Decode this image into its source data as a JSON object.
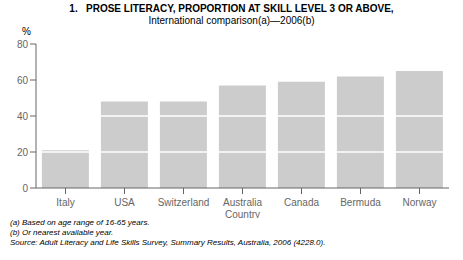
{
  "chart_data": {
    "type": "bar",
    "title": "1.   PROSE LITERACY, PROPORTION AT SKILL LEVEL 3 OR ABOVE,",
    "subtitle": "International comparison(a)—2006(b)",
    "categories": [
      "Italy",
      "USA",
      "Switzerland",
      "Australia\nCountry",
      "Canada",
      "Bermuda",
      "Norway"
    ],
    "values": [
      21,
      48,
      48,
      57,
      59,
      62,
      65
    ],
    "segment_breaks": [
      20,
      40
    ],
    "color": "#cccccc",
    "ylabel": "%",
    "ylim": [
      0,
      80
    ],
    "yticks": [
      0,
      20,
      40,
      60,
      80
    ],
    "grid": false,
    "footnotes": [
      "(a) Based on age range of 16-65 years.",
      "(b) Or nearest available year."
    ],
    "source": "Source: Adult Literacy and Life Skills Survey, Summary Results, Australia, 2006 (4228.0)."
  }
}
